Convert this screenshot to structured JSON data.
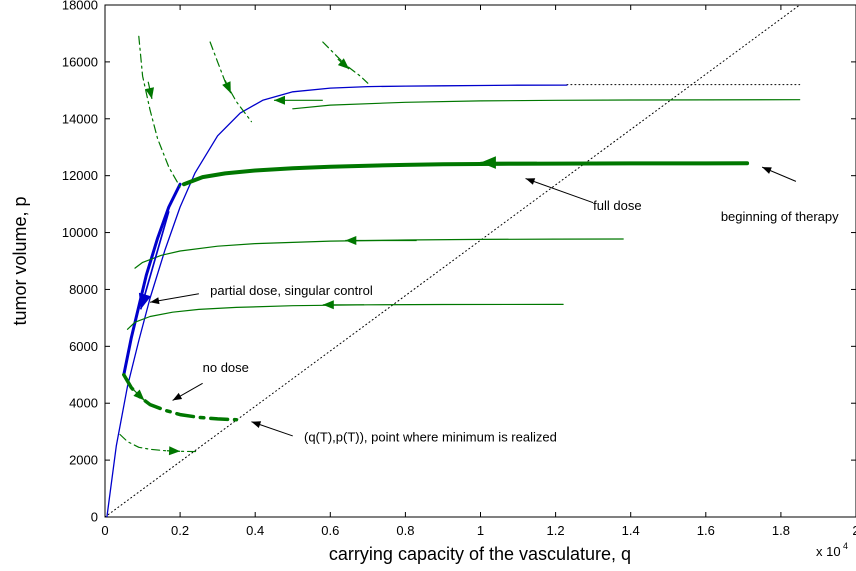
{
  "chart_data": {
    "type": "line",
    "xlabel": "carrying capacity of the vasculature, q",
    "ylabel": "tumor volume, p",
    "x_multiplier_label": "x 10",
    "x_multiplier_exponent": "4",
    "xlim": [
      0,
      20000
    ],
    "ylim": [
      0,
      18000
    ],
    "grid": false,
    "xticks": [
      0,
      2000,
      4000,
      6000,
      8000,
      10000,
      12000,
      14000,
      16000,
      18000,
      20000
    ],
    "xtick_labels": [
      "0",
      "0.2",
      "0.4",
      "0.6",
      "0.8",
      "1",
      "1.2",
      "1.4",
      "1.6",
      "1.8",
      "2"
    ],
    "yticks": [
      0,
      2000,
      4000,
      6000,
      8000,
      10000,
      12000,
      14000,
      16000,
      18000
    ],
    "ytick_labels": [
      "0",
      "2000",
      "4000",
      "6000",
      "8000",
      "10000",
      "12000",
      "14000",
      "16000",
      "18000"
    ],
    "series": [
      {
        "style": "dotted",
        "color": "#000000",
        "x": [
          0,
          18500
        ],
        "y": [
          0,
          18000
        ]
      },
      {
        "style": "dotted",
        "color": "#000000",
        "x": [
          12300,
          18500
        ],
        "y": [
          15200,
          15200
        ]
      },
      {
        "style": "solid",
        "color": "#0000cc",
        "width": 1.3,
        "x": [
          50,
          300,
          600,
          900,
          1200,
          1600,
          2000,
          2400,
          3000,
          3600,
          4200,
          5000,
          6000,
          7000,
          8000,
          9000,
          10000,
          11000,
          12300
        ],
        "y": [
          0,
          2500,
          4600,
          6200,
          7700,
          9400,
          10900,
          12100,
          13400,
          14200,
          14650,
          14950,
          15080,
          15130,
          15150,
          15160,
          15170,
          15180,
          15185
        ]
      },
      {
        "style": "solid",
        "color": "#0000cc",
        "width": 3,
        "x": [
          500,
          700,
          900,
          1100,
          1400,
          1700,
          2000
        ],
        "y": [
          5000,
          6300,
          7400,
          8500,
          9800,
          10900,
          11700
        ]
      },
      {
        "style": "solid",
        "color": "#007700",
        "width": 1.2,
        "x": [
          5000,
          6000,
          8000,
          10000,
          12000,
          14000,
          16000,
          18500
        ],
        "y": [
          14350,
          14480,
          14580,
          14630,
          14650,
          14660,
          14665,
          14670
        ]
      },
      {
        "style": "solid",
        "color": "#007700",
        "width": 4,
        "x": [
          2100,
          2600,
          3200,
          4000,
          5000,
          6000,
          7000,
          8000,
          9000,
          10000,
          11000,
          12000,
          13000,
          14000,
          15000,
          16000,
          17100
        ],
        "y": [
          11700,
          11950,
          12080,
          12180,
          12260,
          12310,
          12350,
          12380,
          12400,
          12410,
          12420,
          12425,
          12428,
          12430,
          12432,
          12433,
          12435
        ]
      },
      {
        "style": "solid",
        "color": "#007700",
        "width": 1.2,
        "x": [
          800,
          1000,
          1500,
          2000,
          3000,
          4000,
          6000,
          8000,
          10000,
          12000,
          13800
        ],
        "y": [
          8750,
          8950,
          9200,
          9350,
          9520,
          9610,
          9700,
          9740,
          9760,
          9770,
          9775
        ]
      },
      {
        "style": "solid",
        "color": "#007700",
        "width": 1.2,
        "x": [
          600,
          800,
          1200,
          1800,
          2500,
          3500,
          5000,
          7000,
          9000,
          12200
        ],
        "y": [
          6600,
          6850,
          7050,
          7200,
          7300,
          7370,
          7430,
          7460,
          7470,
          7475
        ]
      },
      {
        "style": "dashdot",
        "color": "#007700",
        "width": 1.2,
        "x": [
          900,
          1000,
          1200,
          1400,
          1700,
          2000
        ],
        "y": [
          16900,
          15500,
          14300,
          13300,
          12300,
          11600
        ]
      },
      {
        "style": "dashdot",
        "color": "#007700",
        "width": 1.2,
        "x": [
          2800,
          3000,
          3200,
          3500,
          3900
        ],
        "y": [
          16700,
          16000,
          15300,
          14600,
          13900
        ]
      },
      {
        "style": "dashdot",
        "color": "#007700",
        "width": 1.2,
        "x": [
          5800,
          6100,
          6400,
          6800,
          7000
        ],
        "y": [
          16700,
          16300,
          15900,
          15500,
          15250
        ]
      },
      {
        "style": "dashdot",
        "color": "#007700",
        "width": 3.5,
        "x": [
          500,
          700,
          900,
          1200,
          1600,
          2000,
          2500,
          3000,
          3500
        ],
        "y": [
          5000,
          4550,
          4250,
          3950,
          3750,
          3600,
          3500,
          3450,
          3420
        ]
      },
      {
        "style": "dashdot",
        "color": "#007700",
        "width": 1.2,
        "x": [
          400,
          600,
          900,
          1200,
          1600,
          2000,
          2500
        ],
        "y": [
          2900,
          2650,
          2450,
          2380,
          2330,
          2310,
          2300
        ]
      }
    ],
    "flow_arrows": [
      {
        "color": "#007700",
        "from": [
          5800,
          14650
        ],
        "to": [
          4500,
          14650
        ],
        "size": 1
      },
      {
        "color": "#007700",
        "from": [
          11500,
          12460
        ],
        "to": [
          10000,
          12460
        ],
        "size": 1.4
      },
      {
        "color": "#007700",
        "from": [
          8300,
          9720
        ],
        "to": [
          6400,
          9720
        ],
        "size": 1
      },
      {
        "color": "#007700",
        "from": [
          6900,
          7460
        ],
        "to": [
          5800,
          7460
        ],
        "size": 1
      },
      {
        "color": "#007700",
        "from": [
          1150,
          15300
        ],
        "to": [
          1250,
          14700
        ],
        "size": 1
      },
      {
        "color": "#007700",
        "from": [
          3200,
          15350
        ],
        "to": [
          3350,
          14900
        ],
        "size": 1
      },
      {
        "color": "#007700",
        "from": [
          6200,
          16100
        ],
        "to": [
          6500,
          15750
        ],
        "size": 1
      },
      {
        "color": "#007700",
        "from": [
          700,
          4550
        ],
        "to": [
          1050,
          4100
        ],
        "size": 1
      },
      {
        "color": "#007700",
        "from": [
          1650,
          2330
        ],
        "to": [
          2000,
          2310
        ],
        "size": 1
      },
      {
        "color": "#0000cc",
        "from": [
          1700,
          10750
        ],
        "to": [
          950,
          7300
        ],
        "size": 1.4
      }
    ],
    "annotations": [
      {
        "text": "full dose",
        "text_at": [
          13000,
          10800
        ],
        "arrow_from": [
          13000,
          11050
        ],
        "arrow_to": [
          11200,
          11900
        ]
      },
      {
        "text": "beginning of therapy",
        "text_at": [
          16400,
          10400
        ],
        "arrow_from": [
          18400,
          11800
        ],
        "arrow_to": [
          17500,
          12300
        ]
      },
      {
        "text": "partial dose, singular control",
        "text_at": [
          2800,
          7800
        ],
        "arrow_from": [
          2500,
          7850
        ],
        "arrow_to": [
          1200,
          7550
        ]
      },
      {
        "text": "no dose",
        "text_at": [
          2600,
          5100
        ],
        "arrow_from": [
          2600,
          4700
        ],
        "arrow_to": [
          1800,
          4100
        ]
      },
      {
        "text": "(q(T),p(T)), point where minimum is realized",
        "text_at": [
          5300,
          2650
        ],
        "arrow_from": [
          5000,
          2850
        ],
        "arrow_to": [
          3900,
          3350
        ]
      }
    ]
  }
}
